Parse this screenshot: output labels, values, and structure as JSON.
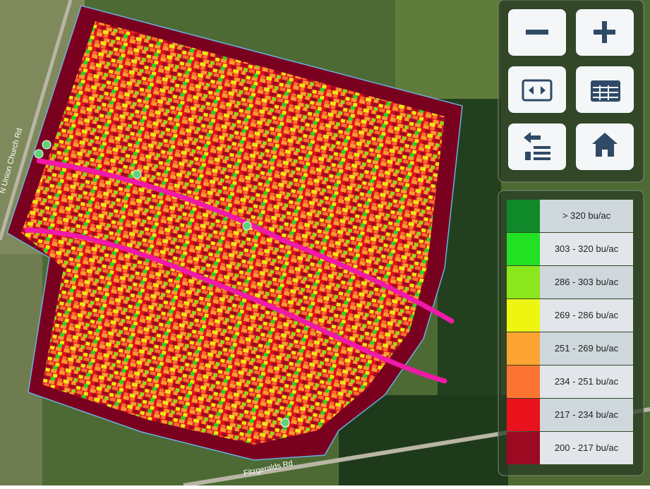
{
  "roads": [
    {
      "label": "N Union Church Rd"
    },
    {
      "label": "Fitzgeralds Rd"
    }
  ],
  "legend": {
    "items": [
      {
        "label": "> 320 bu/ac",
        "color": "#10892a"
      },
      {
        "label": "303 - 320 bu/ac",
        "color": "#22e022"
      },
      {
        "label": "286 - 303 bu/ac",
        "color": "#8ce61c"
      },
      {
        "label": "269 - 286 bu/ac",
        "color": "#eef511"
      },
      {
        "label": "251 - 269 bu/ac",
        "color": "#fca432"
      },
      {
        "label": "234 - 251 bu/ac",
        "color": "#fc7432"
      },
      {
        "label": "217 - 234 bu/ac",
        "color": "#e8111c"
      },
      {
        "label": "200 - 217 bu/ac",
        "color": "#9c0a22"
      }
    ]
  }
}
